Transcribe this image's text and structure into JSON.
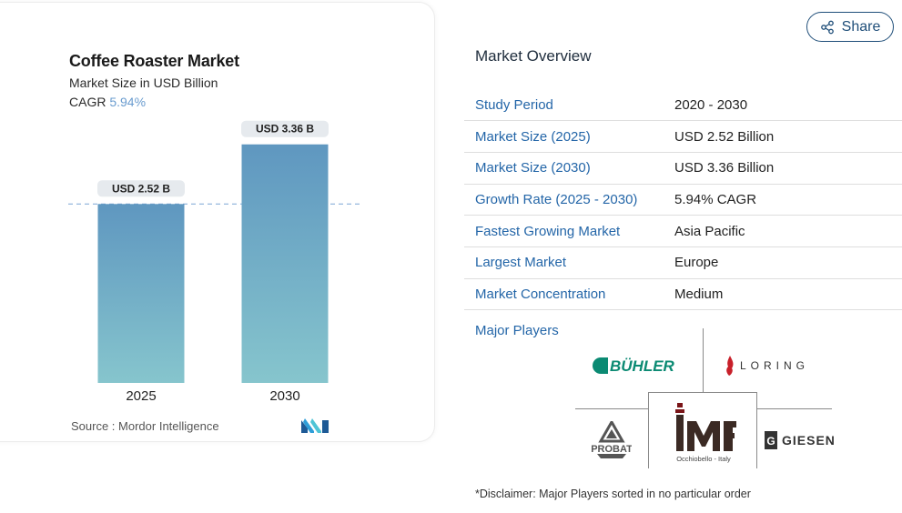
{
  "chart_data": {
    "type": "bar",
    "title": "Coffee Roaster Market",
    "subtitle": "Market Size in USD Billion",
    "cagr_label": "CAGR",
    "cagr_value": "5.94%",
    "categories": [
      "2025",
      "2030"
    ],
    "values": [
      2.52,
      3.36
    ],
    "data_labels": [
      "USD 2.52 B",
      "USD 3.36 B"
    ],
    "ylim": [
      0,
      3.6
    ],
    "grid": false,
    "legend": "none",
    "bar_color_top": "#5f97c0",
    "bar_color_bottom": "#86c5cd",
    "reference_line_color": "#7aa6d6"
  },
  "source_label": "Source :",
  "source_name": "Mordor Intelligence",
  "share_label": "Share",
  "overview": {
    "title": "Market Overview",
    "rows": [
      {
        "label": "Study Period",
        "value": "2020 - 2030"
      },
      {
        "label": "Market Size (2025)",
        "value": "USD 2.52 Billion"
      },
      {
        "label": "Market Size (2030)",
        "value": "USD 3.36 Billion"
      },
      {
        "label": "Growth Rate (2025 - 2030)",
        "value": "5.94% CAGR"
      },
      {
        "label": "Fastest Growing Market",
        "value": "Asia Pacific"
      },
      {
        "label": "Largest Market",
        "value": "Europe"
      },
      {
        "label": "Market Concentration",
        "value": "Medium"
      }
    ]
  },
  "major_players": {
    "label": "Major Players",
    "logos": [
      {
        "name": "BÜHLER",
        "icon": "buhler-logo"
      },
      {
        "name": "LORING",
        "icon": "loring-logo"
      },
      {
        "name": "PROBAT",
        "icon": "probat-logo"
      },
      {
        "name": "IMF",
        "icon": "imf-logo",
        "tagline": "Occhiobello - Italy"
      },
      {
        "name": "GIESEN",
        "icon": "giesen-logo"
      }
    ]
  },
  "disclaimer": "*Disclaimer: Major Players sorted in no particular order",
  "colors": {
    "accent_blue": "#2466a8",
    "share_border": "#1f4e79",
    "cagr_text": "#6a9ccf"
  }
}
